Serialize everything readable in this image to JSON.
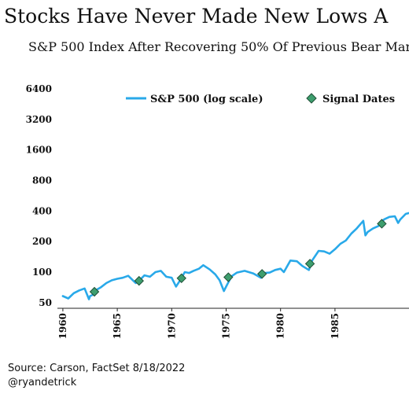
{
  "title": "Stocks Have Never Made New Lows A",
  "subtitle": "S&P 500 Index After Recovering 50% Of Previous Bear Mar",
  "footer": {
    "source": "Source: Carson, FactSet 8/18/2022",
    "handle": "@ryandetrick"
  },
  "colors": {
    "line": "#29a9e9",
    "marker_fill": "#3e9e6e",
    "marker_stroke": "#1f4f36"
  },
  "chart_data": {
    "type": "line",
    "title": "Stocks Have Never Made New Lows A",
    "subtitle": "S&P 500 Index After Recovering 50% Of Previous Bear Mar",
    "xlabel": "",
    "ylabel": "",
    "yscale": "log",
    "xlim": [
      1959.5,
      1991.8
    ],
    "ylim": [
      44,
      7000
    ],
    "grid": false,
    "legend_position": "top",
    "x_ticks": [
      1960,
      1965,
      1970,
      1975,
      1980,
      1985
    ],
    "x_tick_labels": [
      "1960",
      "1965",
      "1970",
      "1975",
      "1980",
      "1985"
    ],
    "y_ticks": [
      50,
      100,
      200,
      400,
      800,
      1600,
      3200,
      6400
    ],
    "y_tick_labels": [
      "50",
      "100",
      "200",
      "400",
      "800",
      "1600",
      "3200",
      "6400"
    ],
    "series": [
      {
        "name": "S&P 500 (log scale)",
        "type": "line",
        "x": [
          1960.0,
          1960.5,
          1961.0,
          1961.5,
          1962.0,
          1962.4,
          1962.5,
          1962.8,
          1963.0,
          1963.5,
          1964.0,
          1964.5,
          1965.0,
          1965.5,
          1966.0,
          1966.7,
          1967.0,
          1967.5,
          1968.0,
          1968.5,
          1969.0,
          1969.5,
          1970.0,
          1970.4,
          1970.8,
          1971.2,
          1971.6,
          1972.0,
          1972.5,
          1972.9,
          1973.5,
          1974.0,
          1974.4,
          1974.8,
          1975.0,
          1975.5,
          1976.0,
          1976.7,
          1977.5,
          1978.2,
          1978.6,
          1979.0,
          1979.5,
          1980.0,
          1980.3,
          1980.9,
          1981.5,
          1982.0,
          1982.6,
          1982.9,
          1983.5,
          1984.0,
          1984.5,
          1985.0,
          1985.5,
          1986.0,
          1986.5,
          1987.0,
          1987.6,
          1987.8,
          1988.0,
          1988.5,
          1989.0,
          1989.5,
          1990.0,
          1990.5,
          1990.8,
          1991.0,
          1991.5,
          1991.8
        ],
        "values": [
          58,
          55,
          62,
          66,
          69,
          54,
          58,
          60,
          66,
          71,
          78,
          83,
          86,
          88,
          92,
          78,
          82,
          93,
          90,
          100,
          103,
          90,
          88,
          72,
          84,
          100,
          98,
          103,
          108,
          117,
          106,
          95,
          83,
          65,
          72,
          91,
          99,
          103,
          97,
          88,
          98,
          99,
          105,
          108,
          100,
          130,
          128,
          115,
          105,
          130,
          162,
          160,
          152,
          168,
          190,
          205,
          240,
          270,
          320,
          230,
          248,
          270,
          285,
          330,
          350,
          355,
          305,
          330,
          375,
          382
        ]
      },
      {
        "name": "Signal Dates",
        "type": "scatter",
        "x": [
          1962.9,
          1967.0,
          1970.9,
          1975.2,
          1978.3,
          1982.7,
          1989.3
        ],
        "values": [
          64,
          82,
          87,
          89,
          96,
          121,
          300
        ]
      }
    ]
  }
}
